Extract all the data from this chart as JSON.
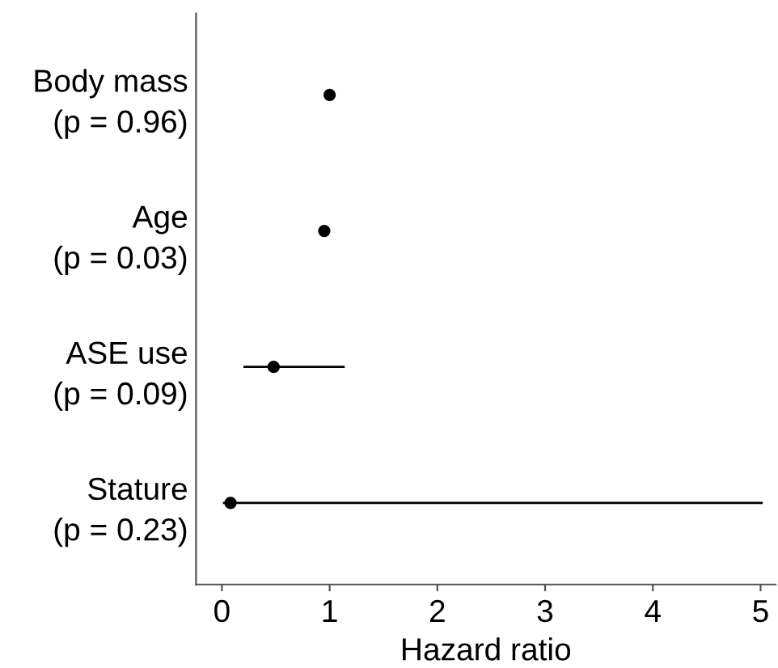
{
  "chart_data": {
    "type": "scatter",
    "orientation": "horizontal",
    "xlabel": "Hazard ratio",
    "categories": [
      "Body mass\n(p = 0.96)",
      "Age\n(p = 0.03)",
      "ASE use\n(p = 0.09)",
      "Stature\n(p = 0.23)"
    ],
    "values": [
      1.0,
      0.95,
      0.48,
      0.08
    ],
    "errors": [
      null,
      null,
      [
        0.2,
        1.14
      ],
      [
        0.01,
        5.02
      ]
    ],
    "color": "#000000",
    "marker": "circle",
    "xlim": [
      -0.24,
      5.14
    ],
    "xticks": [
      0,
      1,
      2,
      3,
      4,
      5
    ],
    "grid": false
  }
}
